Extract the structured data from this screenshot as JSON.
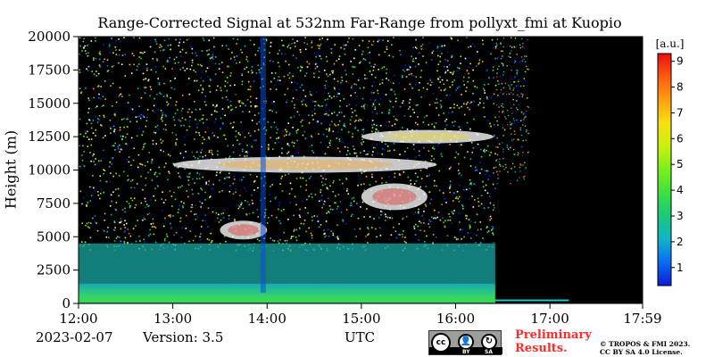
{
  "chart_data": {
    "type": "heatmap",
    "title": "Range-Corrected Signal at 532nm Far-Range from pollyxt_fmi at Kuopio",
    "xlabel": "UTC",
    "ylabel": "Height (m)",
    "x_ticks": [
      "12:00",
      "13:00",
      "14:00",
      "15:00",
      "16:00",
      "17:00",
      "17:59"
    ],
    "x_tick_hours": [
      12.0,
      13.0,
      14.0,
      15.0,
      16.0,
      17.0,
      17.983
    ],
    "xlim_hours": [
      12.0,
      17.983
    ],
    "y_ticks": [
      0,
      2500,
      5000,
      7500,
      10000,
      12500,
      15000,
      17500,
      20000
    ],
    "ylim": [
      0,
      20000
    ],
    "colorbar": {
      "label": "[a.u.]",
      "ticks": [
        1,
        2,
        3,
        4,
        5,
        6,
        7,
        8,
        9
      ],
      "range": [
        0.3,
        9.3
      ],
      "colors": [
        "#0a1bd6",
        "#0a6cf2",
        "#10b4c8",
        "#1ac87a",
        "#3ee040",
        "#7bf01a",
        "#c8f010",
        "#f8e010",
        "#ffa010",
        "#ff5a10",
        "#e81010"
      ]
    },
    "data_end_hour": 16.42,
    "layers": [
      {
        "name": "boundary-layer",
        "height_range": [
          0,
          1500
        ],
        "time_range": [
          12.0,
          16.42
        ],
        "level": 4.5
      },
      {
        "name": "lower-troposphere",
        "height_range": [
          1500,
          4500
        ],
        "time_range": [
          12.0,
          16.42
        ],
        "level": 3.0
      },
      {
        "name": "cloud-5000m",
        "height_range": [
          4800,
          6200
        ],
        "time_range": [
          13.5,
          14.0
        ],
        "level": 9.0
      },
      {
        "name": "cloud-8000m",
        "height_range": [
          7000,
          9000
        ],
        "time_range": [
          15.0,
          15.7
        ],
        "level": 9.0
      },
      {
        "name": "cloud-10500m",
        "height_range": [
          9800,
          11000
        ],
        "time_range": [
          13.0,
          15.8
        ],
        "level": 7.5
      },
      {
        "name": "cloud-12500m",
        "height_range": [
          12000,
          13000
        ],
        "time_range": [
          15.0,
          16.4
        ],
        "level": 6.5
      }
    ]
  },
  "footer": {
    "date": "2023-02-07",
    "version": "Version: 3.5",
    "preliminary_line1": "Preliminary",
    "preliminary_line2": "Results.",
    "copyright_line1": "© TROPOS & FMI 2023.",
    "copyright_line2": "CC BY SA 4.0 License."
  },
  "license_badge": {
    "cc": "cc",
    "by": "BY",
    "sa": "SA",
    "by_icon": "person-icon",
    "sa_icon": "share-alike-icon"
  }
}
